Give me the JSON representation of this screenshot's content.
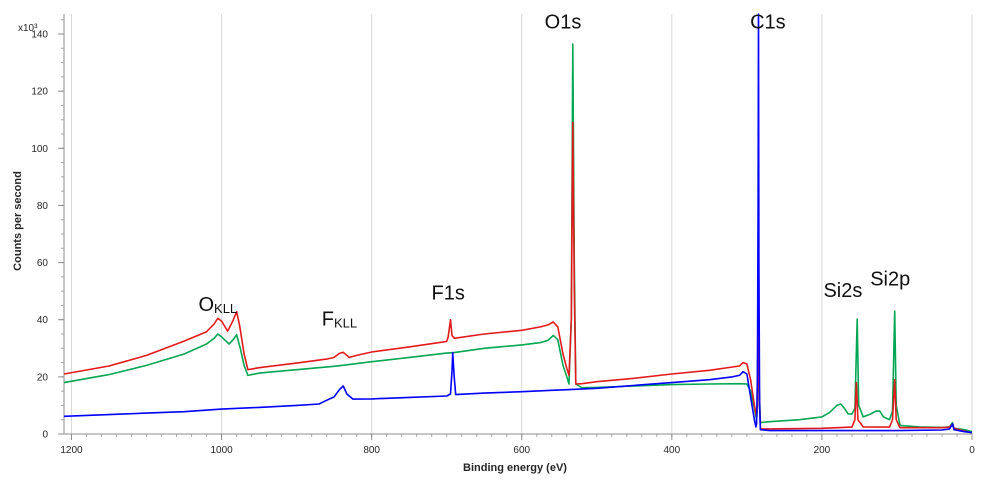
{
  "chart_data": {
    "type": "line",
    "xlabel": "Binding energy (eV)",
    "ylabel": "Counts per second",
    "y_multiplier": "x10³",
    "xlim": [
      1210,
      0
    ],
    "ylim": [
      0,
      147
    ],
    "x_ticks": [
      1200,
      1000,
      800,
      600,
      400,
      200,
      0
    ],
    "y_ticks": [
      0,
      20,
      40,
      60,
      80,
      100,
      120,
      140
    ],
    "x_reversed": true,
    "grid": "vertical",
    "annotations": [
      {
        "label": "O",
        "sub": "KLL",
        "x": 1005,
        "y": 43
      },
      {
        "label": "F",
        "sub": "KLL",
        "x": 843,
        "y": 38
      },
      {
        "label": "F1s",
        "sub": "",
        "x": 698,
        "y": 47
      },
      {
        "label": "O1s",
        "sub": "",
        "x": 545,
        "y": 142
      },
      {
        "label": "C1s",
        "sub": "",
        "x": 272,
        "y": 142
      },
      {
        "label": "Si2s",
        "sub": "",
        "x": 172,
        "y": 48
      },
      {
        "label": "Si2p",
        "sub": "",
        "x": 109,
        "y": 52
      }
    ],
    "series": [
      {
        "color": "#00a651",
        "points": [
          [
            1210,
            18.0
          ],
          [
            1150,
            20.8
          ],
          [
            1100,
            24.0
          ],
          [
            1050,
            28.0
          ],
          [
            1020,
            31.5
          ],
          [
            1010,
            33.5
          ],
          [
            1005,
            35.0
          ],
          [
            1000,
            34.0
          ],
          [
            990,
            31.5
          ],
          [
            983,
            33.5
          ],
          [
            980,
            34.8
          ],
          [
            975,
            30.0
          ],
          [
            970,
            24.0
          ],
          [
            965,
            20.5
          ],
          [
            950,
            21.3
          ],
          [
            900,
            22.5
          ],
          [
            850,
            23.7
          ],
          [
            840,
            24.0
          ],
          [
            800,
            25.3
          ],
          [
            750,
            26.8
          ],
          [
            700,
            28.3
          ],
          [
            690,
            28.5
          ],
          [
            650,
            30.0
          ],
          [
            600,
            31.2
          ],
          [
            575,
            32.0
          ],
          [
            565,
            32.8
          ],
          [
            558,
            34.5
          ],
          [
            552,
            33.0
          ],
          [
            545,
            24.0
          ],
          [
            540,
            20.0
          ],
          [
            537,
            17.5
          ],
          [
            534,
            40.0
          ],
          [
            532,
            136.5
          ],
          [
            530,
            60.0
          ],
          [
            528,
            17.5
          ],
          [
            520,
            16.2
          ],
          [
            500,
            16.3
          ],
          [
            450,
            16.8
          ],
          [
            400,
            17.3
          ],
          [
            350,
            17.5
          ],
          [
            310,
            17.6
          ],
          [
            300,
            17.5
          ],
          [
            295,
            15.0
          ],
          [
            290,
            9.0
          ],
          [
            287,
            5.0
          ],
          [
            286,
            9.0
          ],
          [
            285,
            40.0
          ],
          [
            284.5,
            70.0
          ],
          [
            284,
            20.0
          ],
          [
            282,
            4.0
          ],
          [
            270,
            4.3
          ],
          [
            230,
            5.0
          ],
          [
            200,
            6.0
          ],
          [
            190,
            7.5
          ],
          [
            180,
            10.0
          ],
          [
            175,
            10.5
          ],
          [
            170,
            9.0
          ],
          [
            165,
            7.0
          ],
          [
            160,
            7.0
          ],
          [
            156,
            9.0
          ],
          [
            153,
            40.2
          ],
          [
            151,
            10.0
          ],
          [
            145,
            6.0
          ],
          [
            135,
            7.0
          ],
          [
            128,
            8.0
          ],
          [
            123,
            8.0
          ],
          [
            118,
            6.0
          ],
          [
            110,
            5.0
          ],
          [
            106,
            8.0
          ],
          [
            103,
            43.0
          ],
          [
            101,
            10.0
          ],
          [
            96,
            3.0
          ],
          [
            70,
            2.5
          ],
          [
            40,
            2.3
          ],
          [
            30,
            2.5
          ],
          [
            26,
            4.0
          ],
          [
            24,
            2.0
          ],
          [
            10,
            1.5
          ],
          [
            0,
            0.8
          ]
        ]
      },
      {
        "color": "#e31a1c",
        "points": [
          [
            1210,
            21.0
          ],
          [
            1150,
            23.8
          ],
          [
            1100,
            27.5
          ],
          [
            1050,
            32.5
          ],
          [
            1020,
            35.8
          ],
          [
            1010,
            38.5
          ],
          [
            1005,
            40.5
          ],
          [
            1000,
            39.5
          ],
          [
            992,
            36.0
          ],
          [
            985,
            39.5
          ],
          [
            980,
            42.8
          ],
          [
            976,
            38.0
          ],
          [
            970,
            28.0
          ],
          [
            965,
            22.5
          ],
          [
            950,
            23.2
          ],
          [
            900,
            24.8
          ],
          [
            860,
            26.2
          ],
          [
            850,
            26.8
          ],
          [
            843,
            28.2
          ],
          [
            838,
            28.6
          ],
          [
            830,
            26.8
          ],
          [
            820,
            27.5
          ],
          [
            800,
            28.7
          ],
          [
            750,
            30.5
          ],
          [
            710,
            32.0
          ],
          [
            700,
            32.4
          ],
          [
            698,
            34.0
          ],
          [
            696,
            38.0
          ],
          [
            695,
            40.0
          ],
          [
            693,
            34.5
          ],
          [
            690,
            33.5
          ],
          [
            650,
            35.0
          ],
          [
            600,
            36.3
          ],
          [
            575,
            37.5
          ],
          [
            565,
            38.2
          ],
          [
            558,
            39.2
          ],
          [
            552,
            37.5
          ],
          [
            545,
            28.0
          ],
          [
            540,
            23.0
          ],
          [
            537,
            20.5
          ],
          [
            534,
            40.0
          ],
          [
            532,
            109.0
          ],
          [
            530,
            50.0
          ],
          [
            528,
            17.5
          ],
          [
            520,
            17.6
          ],
          [
            500,
            18.3
          ],
          [
            450,
            19.5
          ],
          [
            400,
            21.0
          ],
          [
            350,
            22.3
          ],
          [
            310,
            23.8
          ],
          [
            305,
            25.0
          ],
          [
            300,
            24.5
          ],
          [
            295,
            19.0
          ],
          [
            290,
            10.0
          ],
          [
            287,
            6.0
          ],
          [
            286,
            10.0
          ],
          [
            285,
            45.0
          ],
          [
            284.5,
            92.5
          ],
          [
            284,
            20.0
          ],
          [
            282,
            1.8
          ],
          [
            270,
            1.8
          ],
          [
            230,
            1.9
          ],
          [
            200,
            2.0
          ],
          [
            160,
            2.4
          ],
          [
            156,
            5.0
          ],
          [
            154,
            18.0
          ],
          [
            152,
            5.0
          ],
          [
            145,
            2.5
          ],
          [
            110,
            2.4
          ],
          [
            106,
            5.0
          ],
          [
            103,
            19.0
          ],
          [
            101,
            5.0
          ],
          [
            96,
            2.2
          ],
          [
            40,
            2.2
          ],
          [
            30,
            2.4
          ],
          [
            26,
            3.5
          ],
          [
            24,
            2.0
          ],
          [
            10,
            1.0
          ],
          [
            0,
            0.5
          ]
        ]
      },
      {
        "color": "#0000ff",
        "points": [
          [
            1210,
            6.2
          ],
          [
            1150,
            6.8
          ],
          [
            1100,
            7.3
          ],
          [
            1050,
            7.8
          ],
          [
            1000,
            8.7
          ],
          [
            950,
            9.3
          ],
          [
            900,
            10.0
          ],
          [
            870,
            10.5
          ],
          [
            860,
            11.8
          ],
          [
            850,
            13.0
          ],
          [
            843,
            15.5
          ],
          [
            838,
            16.8
          ],
          [
            833,
            14.0
          ],
          [
            825,
            12.2
          ],
          [
            800,
            12.3
          ],
          [
            750,
            12.8
          ],
          [
            700,
            13.3
          ],
          [
            695,
            14.0
          ],
          [
            693,
            22.0
          ],
          [
            692,
            28.5
          ],
          [
            690,
            20.0
          ],
          [
            688,
            13.8
          ],
          [
            650,
            14.3
          ],
          [
            600,
            14.8
          ],
          [
            560,
            15.3
          ],
          [
            540,
            15.5
          ],
          [
            500,
            16.0
          ],
          [
            450,
            17.0
          ],
          [
            400,
            18.0
          ],
          [
            350,
            19.0
          ],
          [
            320,
            20.0
          ],
          [
            310,
            20.5
          ],
          [
            305,
            21.8
          ],
          [
            300,
            21.0
          ],
          [
            295,
            13.0
          ],
          [
            290,
            5.0
          ],
          [
            288,
            2.5
          ],
          [
            287,
            3.5
          ],
          [
            286,
            20.0
          ],
          [
            285,
            80.0
          ],
          [
            284.5,
            147.0
          ],
          [
            284,
            60.0
          ],
          [
            283,
            10.0
          ],
          [
            282,
            1.5
          ],
          [
            270,
            1.2
          ],
          [
            200,
            1.2
          ],
          [
            100,
            1.2
          ],
          [
            40,
            1.4
          ],
          [
            30,
            1.8
          ],
          [
            26,
            3.5
          ],
          [
            24,
            1.5
          ],
          [
            10,
            0.8
          ],
          [
            0,
            0.5
          ]
        ]
      }
    ]
  }
}
